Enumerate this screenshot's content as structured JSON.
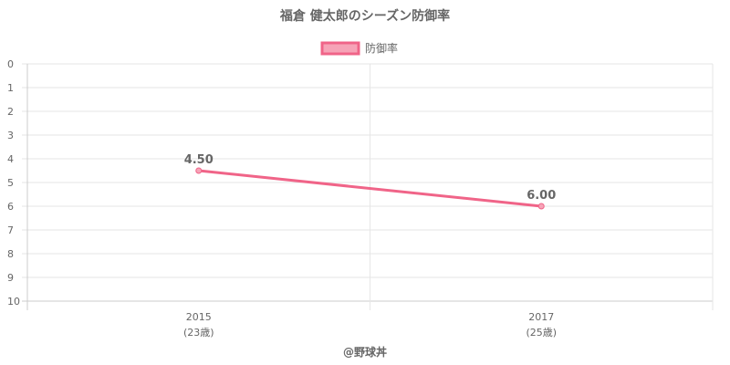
{
  "chart_data": {
    "type": "line",
    "title": "福倉 健太郎のシーズン防御率",
    "categories": [
      {
        "year": "2015",
        "age": "(23歳)"
      },
      {
        "year": "2017",
        "age": "(25歳)"
      }
    ],
    "series": [
      {
        "name": "防御率",
        "values": [
          4.5,
          6.0
        ],
        "labels": [
          "4.50",
          "6.00"
        ]
      }
    ],
    "ylim": [
      0,
      10
    ],
    "y_reversed": true,
    "yticks": [
      "0",
      "1",
      "2",
      "3",
      "4",
      "5",
      "6",
      "7",
      "8",
      "9",
      "10"
    ],
    "grid": true,
    "legend_position": "top"
  },
  "colors": {
    "line": "#f06488",
    "legend_fill": "#f6a3b7",
    "grid": "#e6e6e6",
    "axis": "#cccccc",
    "text": "#666666"
  },
  "credit": "@野球丼"
}
